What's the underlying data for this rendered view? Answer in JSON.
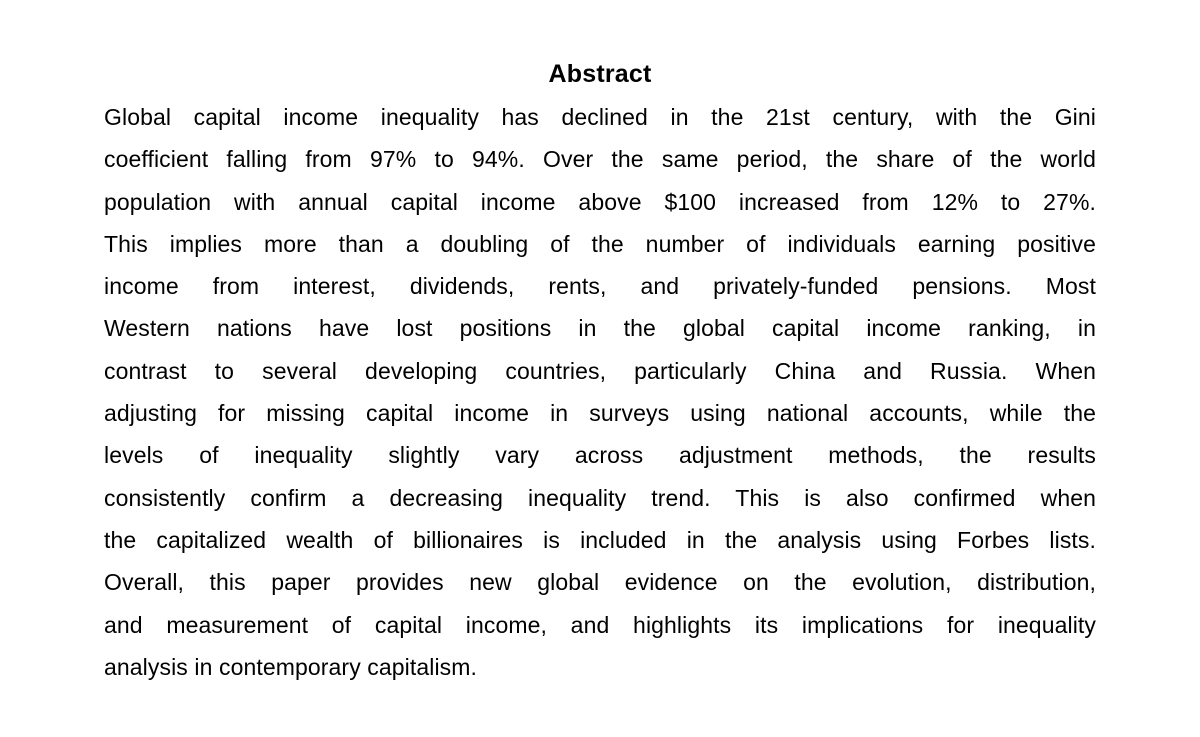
{
  "page": {
    "background_color": "#ffffff",
    "text_color": "#000000"
  },
  "abstract": {
    "title": "Abstract",
    "lines": [
      "Global capital income inequality has declined in the 21st century, with the Gini",
      "coefficient falling from 97% to 94%. Over the same period, the share of the world",
      "population with annual capital income above $100 increased from 12% to 27%.",
      "This implies more than a doubling of the number of individuals earning positive",
      "income from interest, dividends, rents, and privately-funded pensions. Most",
      "Western nations have lost positions in the global capital income ranking, in",
      "contrast to several developing countries, particularly China and Russia. When",
      "adjusting for missing capital income in surveys using national accounts, while the",
      "levels of inequality slightly vary across adjustment methods, the results",
      "consistently confirm a decreasing inequality trend. This is also confirmed when",
      "the capitalized wealth of billionaires is included in the analysis using Forbes lists.",
      "Overall, this paper provides new global evidence on the evolution, distribution,",
      "and measurement of capital income, and highlights its implications for inequality",
      "analysis in contemporary capitalism."
    ]
  }
}
